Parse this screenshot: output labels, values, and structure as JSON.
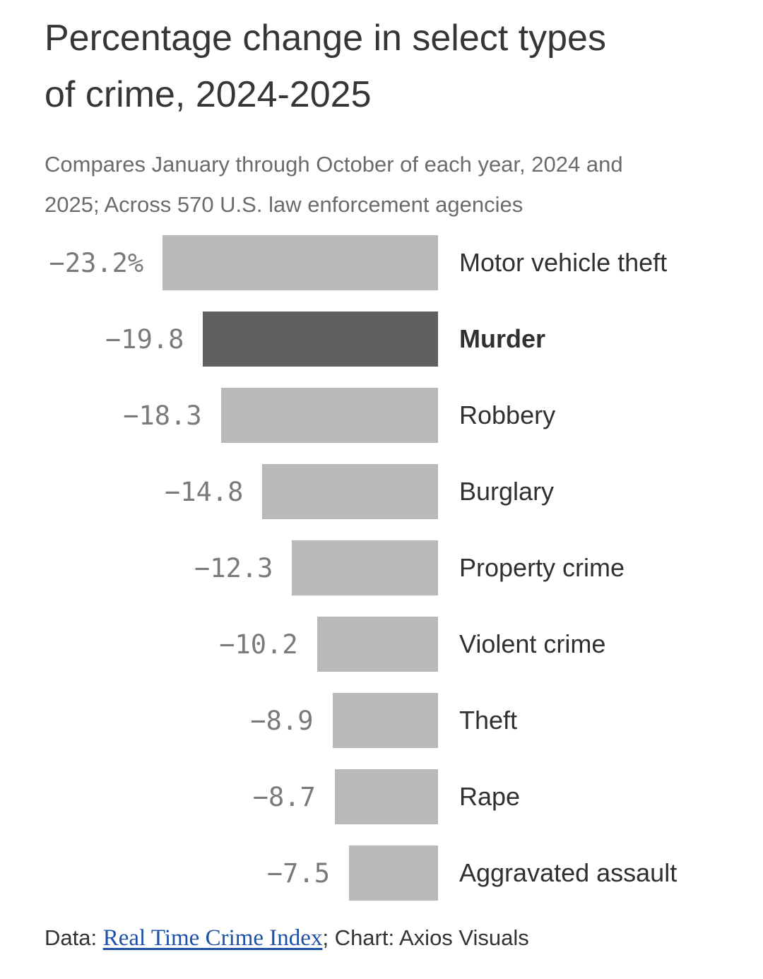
{
  "header": {
    "title_lines": [
      "Percentage change in select types",
      "of crime, 2024-2025"
    ],
    "subtitle_lines": [
      "Compares January through October of each year, 2024 and",
      "2025; Across 570 U.S. law enforcement agencies"
    ]
  },
  "chart_data": {
    "type": "bar",
    "orientation": "horizontal",
    "title": "Percentage change in select types of crime, 2024-2025",
    "subtitle": "Compares January through October of each year, 2024 and 2025; Across 570 U.S. law enforcement agencies",
    "unit": "%",
    "xlim": [
      -25,
      0
    ],
    "grid": false,
    "legend": false,
    "bar_color": "#b9b9b9",
    "emphasis_bar_color": "#606060",
    "value_label_color": "#7a7a7a",
    "category_label_color": "#303030",
    "categories": [
      "Motor vehicle theft",
      "Murder",
      "Robbery",
      "Burglary",
      "Property crime",
      "Violent crime",
      "Theft",
      "Rape",
      "Aggravated assault"
    ],
    "values": [
      -23.2,
      -19.8,
      -18.3,
      -14.8,
      -12.3,
      -10.2,
      -8.9,
      -8.7,
      -7.5
    ],
    "points": [
      {
        "category": "Motor vehicle theft",
        "value": -23.2,
        "label": "−23.2%",
        "emphasis": false
      },
      {
        "category": "Murder",
        "value": -19.8,
        "label": "−19.8",
        "emphasis": true
      },
      {
        "category": "Robbery",
        "value": -18.3,
        "label": "−18.3",
        "emphasis": false
      },
      {
        "category": "Burglary",
        "value": -14.8,
        "label": "−14.8",
        "emphasis": false
      },
      {
        "category": "Property crime",
        "value": -12.3,
        "label": "−12.3",
        "emphasis": false
      },
      {
        "category": "Violent crime",
        "value": -10.2,
        "label": "−10.2",
        "emphasis": false
      },
      {
        "category": "Theft",
        "value": -8.9,
        "label": "−8.9",
        "emphasis": false
      },
      {
        "category": "Rape",
        "value": -8.7,
        "label": "−8.7",
        "emphasis": false
      },
      {
        "category": "Aggravated assault",
        "value": -7.5,
        "label": "−7.5",
        "emphasis": false
      }
    ]
  },
  "footer": {
    "prefix": "Data: ",
    "link_text": "Real Time Crime Index",
    "suffix": "; Chart: Axios Visuals",
    "link_color": "#1d51a9"
  }
}
